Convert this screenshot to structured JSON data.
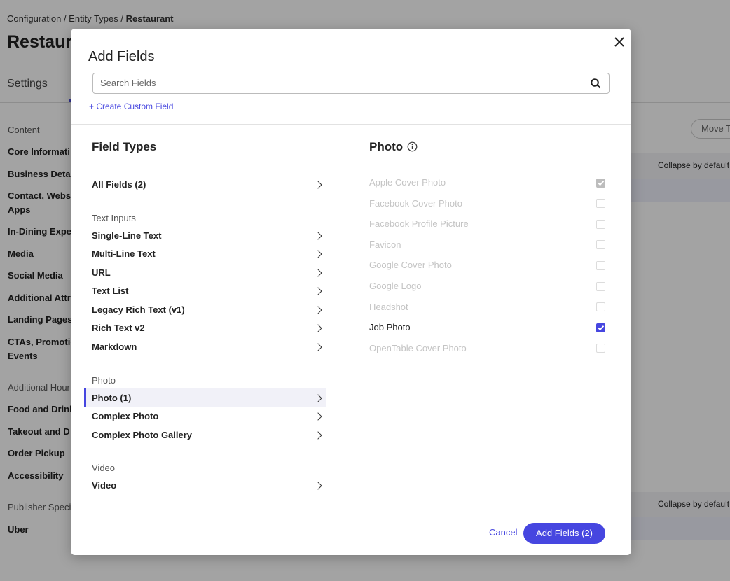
{
  "background": {
    "breadcrumb": {
      "path": "Configuration / Entity Types /",
      "current": "Restaurant"
    },
    "page_title": "Restaur",
    "tabs": [
      "Settings"
    ],
    "sidebar": [
      {
        "lines": [
          "Content"
        ],
        "heading": true
      },
      {
        "lines": [
          "Core Informati"
        ],
        "heading": false
      },
      {
        "lines": [
          "Business Deta"
        ],
        "heading": false
      },
      {
        "lines": [
          "Contact, Webs",
          "Apps"
        ],
        "heading": false
      },
      {
        "lines": [
          "In-Dining Expe"
        ],
        "heading": false
      },
      {
        "lines": [
          "Media"
        ],
        "heading": false
      },
      {
        "lines": [
          "Social Media"
        ],
        "heading": false
      },
      {
        "lines": [
          "Additional Attr"
        ],
        "heading": false
      },
      {
        "lines": [
          "Landing Pages"
        ],
        "heading": false
      },
      {
        "lines": [
          "CTAs, Promotic",
          "Events"
        ],
        "heading": false
      },
      {
        "lines": [
          "Additional Hour"
        ],
        "heading": true
      },
      {
        "lines": [
          "Food and Drink"
        ],
        "heading": false
      },
      {
        "lines": [
          "Takeout and D"
        ],
        "heading": false
      },
      {
        "lines": [
          "Order Pickup"
        ],
        "heading": false
      },
      {
        "lines": [
          "Accessibility"
        ],
        "heading": false
      },
      {
        "lines": [
          "Publisher Speci"
        ],
        "heading": true
      },
      {
        "lines": [
          "Uber"
        ],
        "heading": false
      }
    ],
    "move_button": "Move T",
    "collapse_labels": [
      "Collapse by default",
      "Collapse by default"
    ]
  },
  "modal": {
    "title": "Add Fields",
    "search_placeholder": "Search Fields",
    "create_link": "+ Create Custom Field",
    "left_heading": "Field Types",
    "all_fields": "All Fields (2)",
    "groups": [
      {
        "heading": "Text Inputs",
        "items": [
          {
            "label": "Single-Line Text",
            "selected": false
          },
          {
            "label": "Multi-Line Text",
            "selected": false
          },
          {
            "label": "URL",
            "selected": false
          },
          {
            "label": "Text List",
            "selected": false
          },
          {
            "label": "Legacy Rich Text (v1)",
            "selected": false
          },
          {
            "label": "Rich Text v2",
            "selected": false
          },
          {
            "label": "Markdown",
            "selected": false
          }
        ]
      },
      {
        "heading": "Photo",
        "items": [
          {
            "label": "Photo (1)",
            "selected": true
          },
          {
            "label": "Complex Photo",
            "selected": false
          },
          {
            "label": "Complex Photo Gallery",
            "selected": false
          }
        ]
      },
      {
        "heading": "Video",
        "items": [
          {
            "label": "Video",
            "selected": false
          }
        ]
      }
    ],
    "panel": {
      "title": "Photo",
      "options": [
        {
          "label": "Apple Cover Photo",
          "checked": true,
          "disabled": true
        },
        {
          "label": "Facebook Cover Photo",
          "checked": false,
          "disabled": true
        },
        {
          "label": "Facebook Profile Picture",
          "checked": false,
          "disabled": true
        },
        {
          "label": "Favicon",
          "checked": false,
          "disabled": true
        },
        {
          "label": "Google Cover Photo",
          "checked": false,
          "disabled": true
        },
        {
          "label": "Google Logo",
          "checked": false,
          "disabled": true
        },
        {
          "label": "Headshot",
          "checked": false,
          "disabled": true
        },
        {
          "label": "Job Photo",
          "checked": true,
          "disabled": false
        },
        {
          "label": "OpenTable Cover Photo",
          "checked": false,
          "disabled": true
        }
      ]
    },
    "cancel": "Cancel",
    "submit": "Add Fields (2)"
  }
}
